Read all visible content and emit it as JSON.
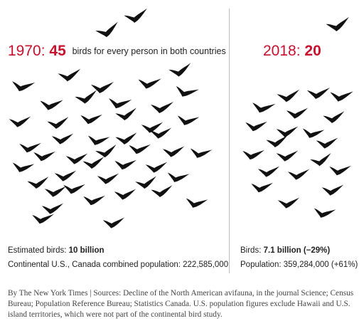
{
  "chart_data": {
    "type": "pictogram",
    "panels": [
      {
        "year_label": "1970:",
        "value_label": "45",
        "description": "birds for every person in both countries",
        "birds_per_person": 45,
        "icon_count": 47,
        "estimated_birds_label": "Estimated birds:",
        "estimated_birds_value": "10 billion",
        "population_text": "Continental U.S., Canada combined population: 222,585,000"
      },
      {
        "year_label": "2018:",
        "value_label": "20",
        "description": "",
        "birds_per_person": 20,
        "icon_count": 22,
        "estimated_birds_label": "Birds:",
        "estimated_birds_value": "7.1 billion (−29%)",
        "population_text": "Population: 359,284,000 (+61%)"
      }
    ]
  },
  "source_note": "By The New York Times | Sources: Decline of the North American avifauna, in the journal Science; Census Bureau; Population Reference Bureau; Statistics Canada. U.S. population figures exclude Hawaii and U.S. island territories, which were not part of the continental bird study.",
  "colors": {
    "accent": "#c8102e",
    "bird": "#111111",
    "divider": "#bdbdbd",
    "text": "#222222"
  },
  "icon": "bird-silhouette-icon"
}
